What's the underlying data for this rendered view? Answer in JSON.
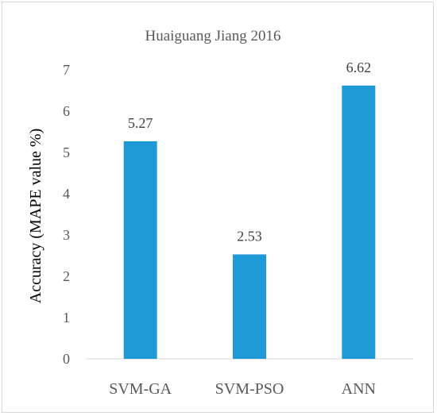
{
  "chart_data": {
    "type": "bar",
    "title": "Huaiguang Jiang 2016",
    "xlabel": "",
    "ylabel": "Accuracy (MAPE value %)",
    "categories": [
      "SVM-GA",
      "SVM-PSO",
      "ANN"
    ],
    "values": [
      5.27,
      2.53,
      6.62
    ],
    "data_labels": [
      "5.27",
      "2.53",
      "6.62"
    ],
    "ylim": [
      0,
      7
    ],
    "yticks": [
      "0",
      "1",
      "2",
      "3",
      "4",
      "5",
      "6",
      "7"
    ],
    "grid": false,
    "legend": "none",
    "bar_color": "#1f9ad6"
  }
}
